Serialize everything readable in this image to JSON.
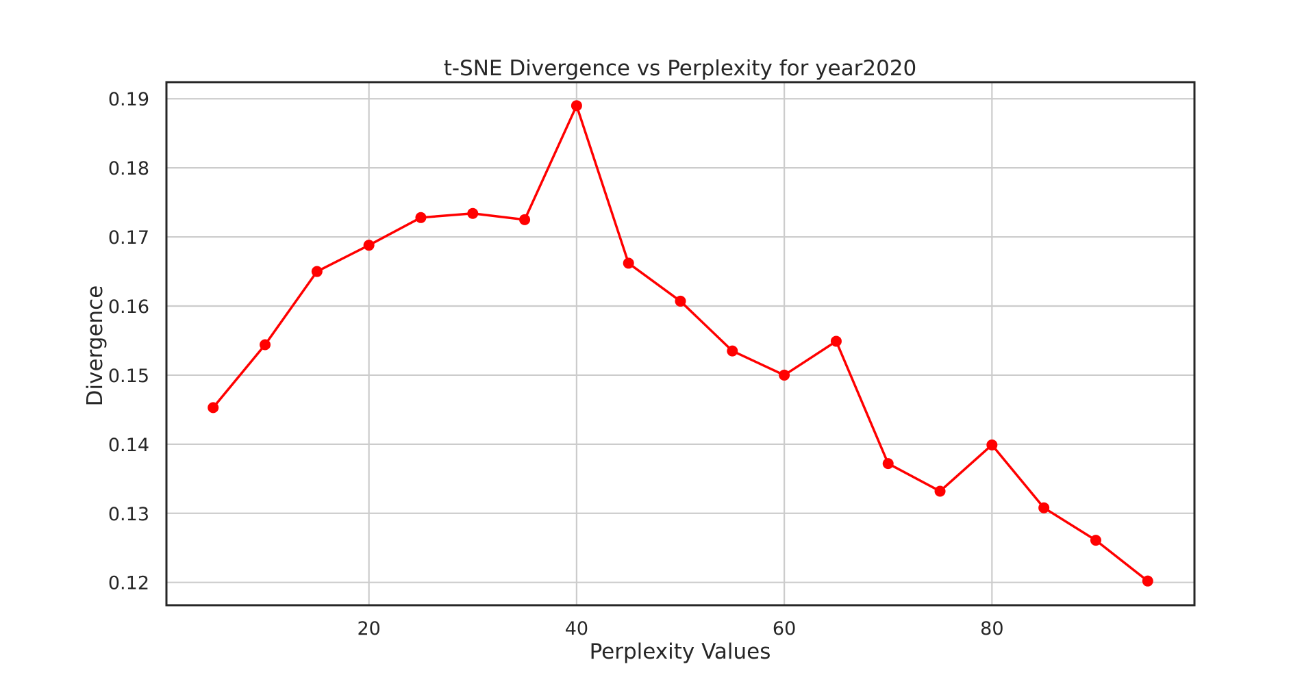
{
  "chart_data": {
    "type": "line",
    "title": "t-SNE Divergence vs Perplexity for year2020",
    "xlabel": "Perplexity Values",
    "ylabel": "Divergence",
    "xlim": [
      0.5,
      99.5
    ],
    "ylim": [
      0.1167,
      0.1924
    ],
    "xticks": [
      20,
      40,
      60,
      80
    ],
    "xtick_labels": [
      "20",
      "40",
      "60",
      "80"
    ],
    "yticks": [
      0.12,
      0.13,
      0.14,
      0.15,
      0.16,
      0.17,
      0.18,
      0.19
    ],
    "ytick_labels": [
      "0.12",
      "0.13",
      "0.14",
      "0.15",
      "0.16",
      "0.17",
      "0.18",
      "0.19"
    ],
    "grid": true,
    "legend": "none",
    "series": [
      {
        "color": "#ff0000",
        "marker": "circle",
        "x": [
          5,
          10,
          15,
          20,
          25,
          30,
          35,
          40,
          45,
          50,
          55,
          60,
          65,
          70,
          75,
          80,
          85,
          90,
          95
        ],
        "y": [
          0.1453,
          0.1544,
          0.165,
          0.1688,
          0.1728,
          0.1734,
          0.1725,
          0.189,
          0.1662,
          0.1607,
          0.1535,
          0.15,
          0.1549,
          0.1372,
          0.1332,
          0.1399,
          0.1308,
          0.1261,
          0.1202
        ]
      }
    ]
  }
}
